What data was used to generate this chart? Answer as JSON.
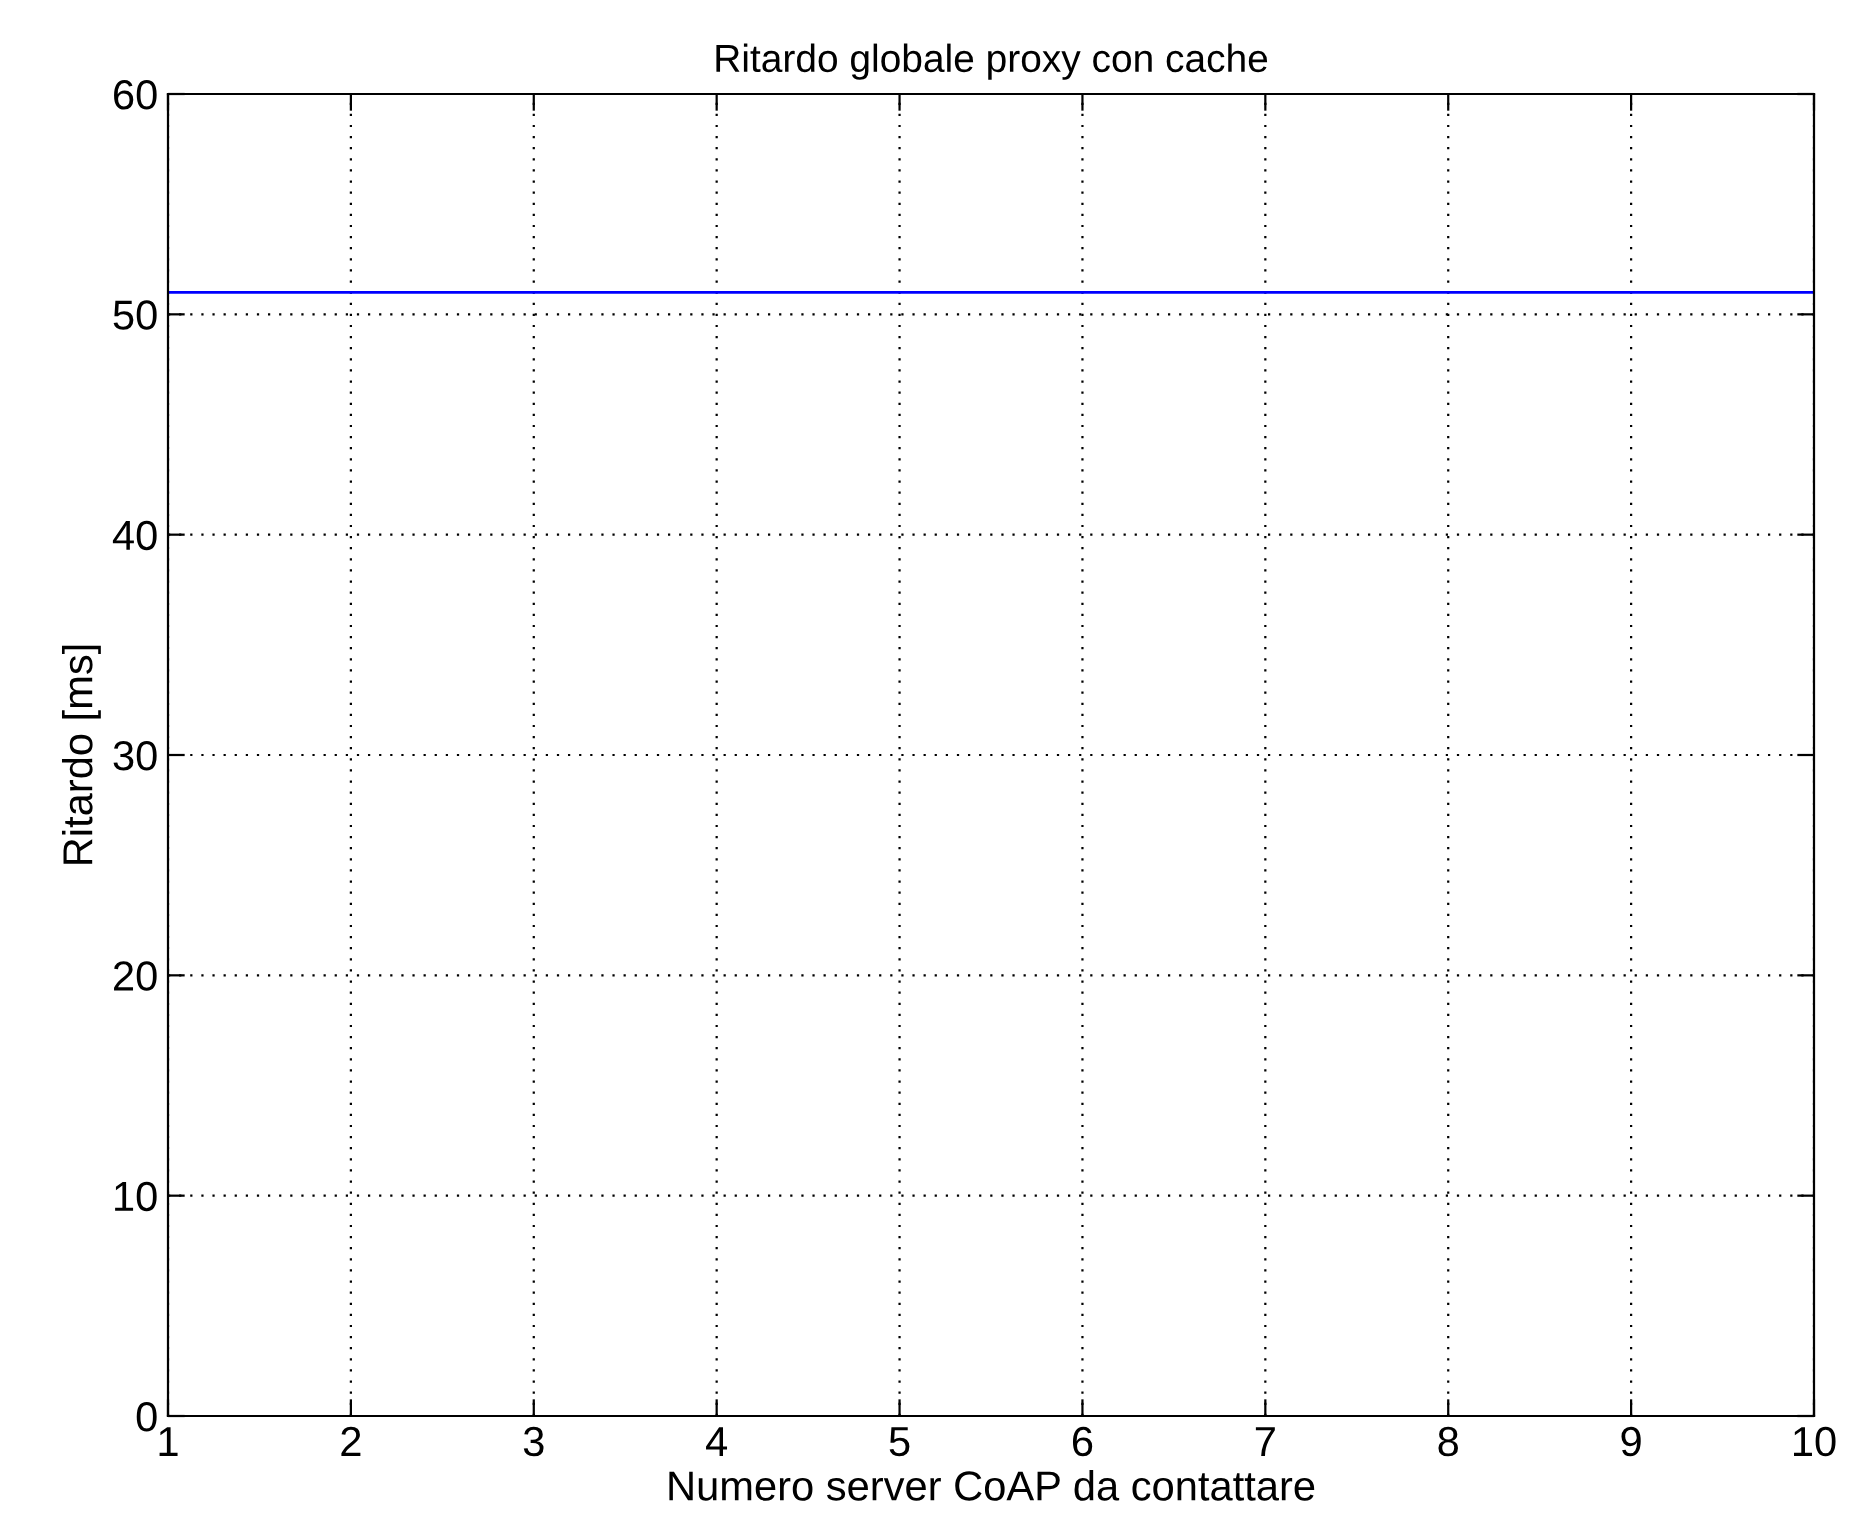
{
  "chart_data": {
    "type": "line",
    "title": "Ritardo globale proxy con cache",
    "xlabel": "Numero server CoAP da contattare",
    "ylabel": "Ritardo [ms]",
    "x": [
      1,
      10
    ],
    "series": [
      {
        "color": "#0000ff",
        "values": [
          51,
          51
        ]
      }
    ],
    "xlim": [
      1,
      10
    ],
    "xticks": [
      1,
      2,
      3,
      4,
      5,
      6,
      7,
      8,
      9,
      10
    ],
    "ylim": [
      0,
      60
    ],
    "yticks": [
      0,
      10,
      20,
      30,
      40,
      50,
      60
    ],
    "grid": true,
    "line_style": "solid",
    "marker": "none"
  }
}
